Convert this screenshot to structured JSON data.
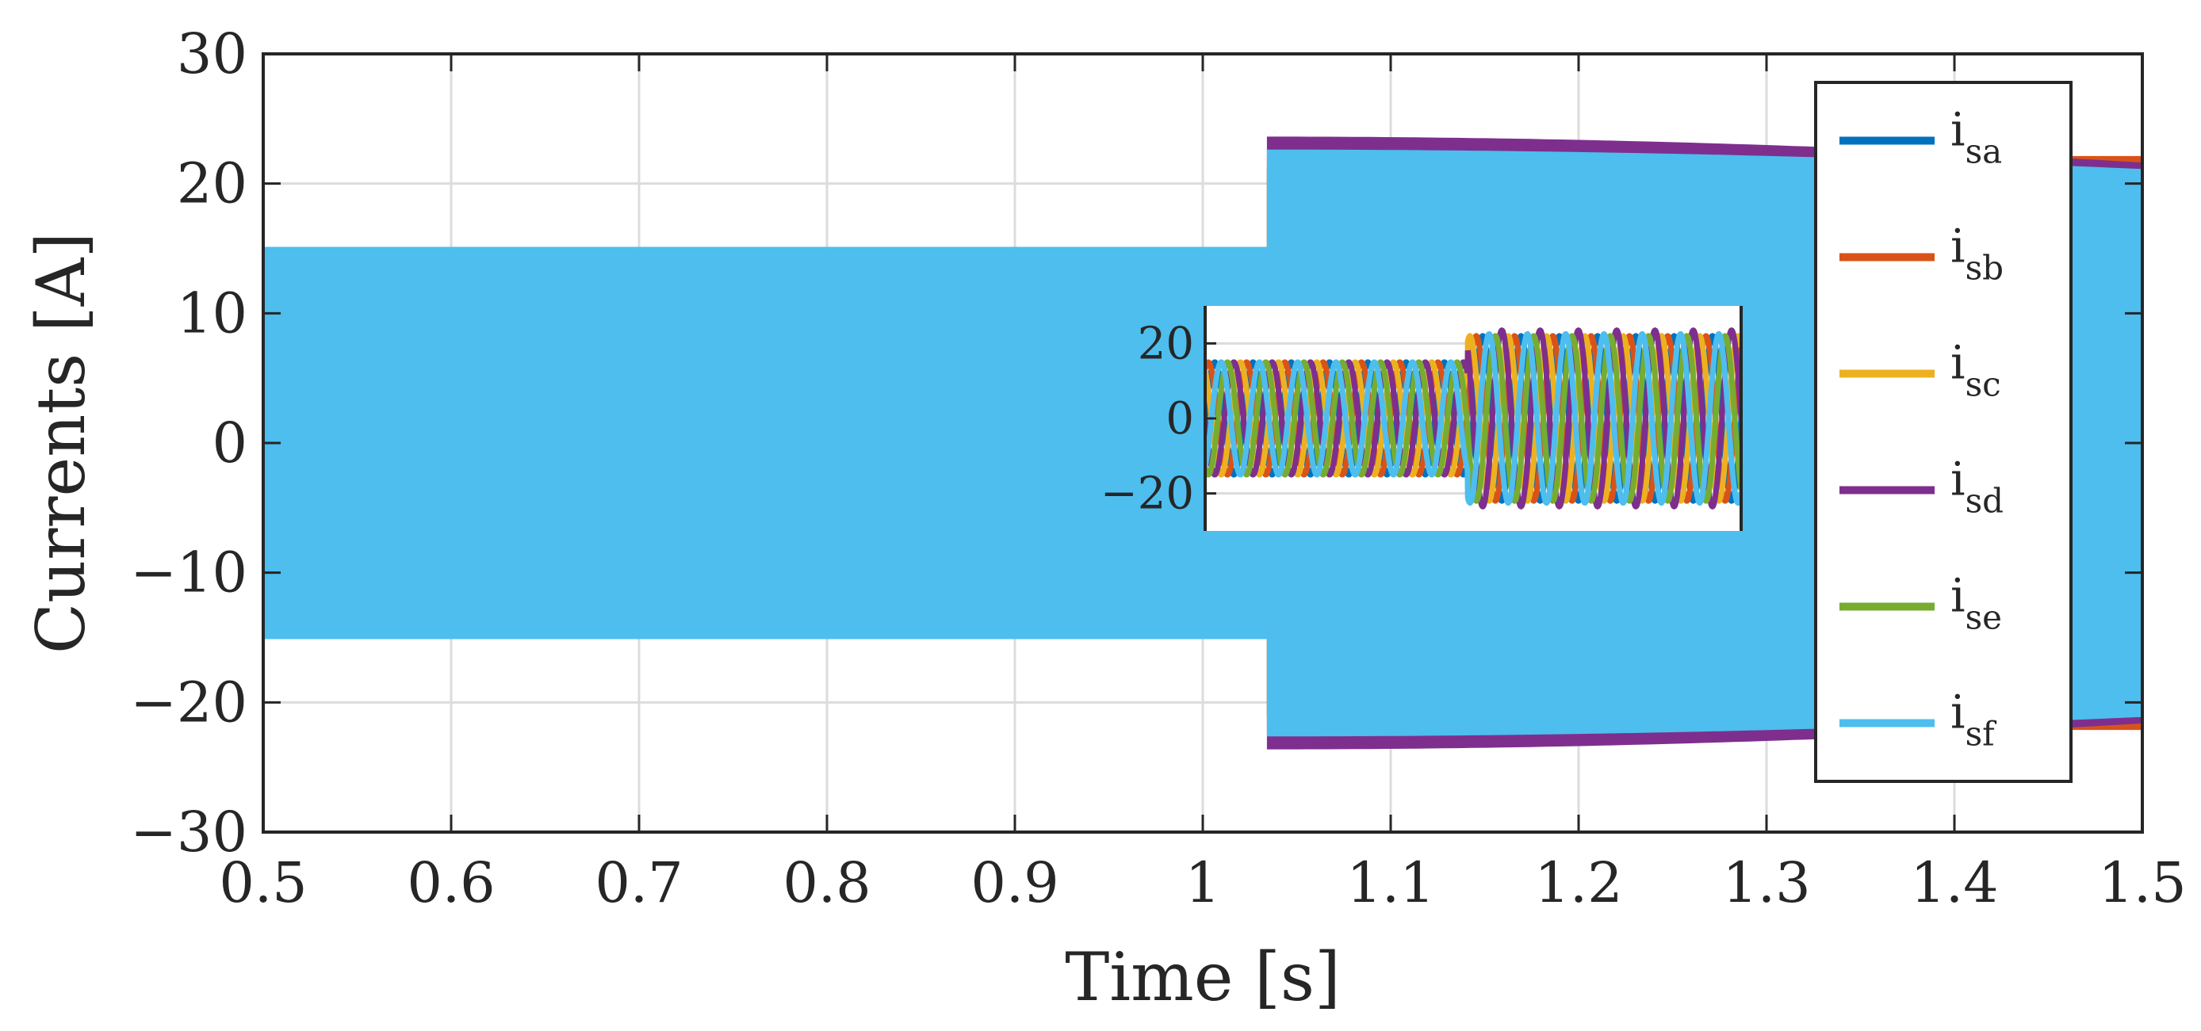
{
  "chart_data": [
    {
      "type": "line",
      "title": "",
      "xlabel": "Time [s]",
      "ylabel": "Currents [A]",
      "xlim": [
        0.5,
        1.5
      ],
      "ylim": [
        -30,
        30
      ],
      "x_ticks": [
        0.5,
        0.6,
        0.7,
        0.8,
        0.9,
        1,
        1.1,
        1.2,
        1.3,
        1.4,
        1.5
      ],
      "x_tick_labels": [
        "0.5",
        "0.6",
        "0.7",
        "0.8",
        "0.9",
        "1",
        "1.1",
        "1.2",
        "1.3",
        "1.4",
        "1.5"
      ],
      "y_ticks": [
        -30,
        -20,
        -10,
        0,
        10,
        20,
        30
      ],
      "y_tick_labels": [
        "−30",
        "−20",
        "−10",
        "0",
        "10",
        "20",
        "30"
      ],
      "grid": true,
      "legend_position": "right",
      "step_time": 1.035,
      "series": [
        {
          "name": "i_sa",
          "main": "i",
          "sub": "sa",
          "color": "#0072BD",
          "amplitude_before": 15,
          "amplitude_after": 21
        },
        {
          "name": "i_sb",
          "main": "i",
          "sub": "sb",
          "color": "#D95319",
          "amplitude_before": 15,
          "amplitude_after": 22
        },
        {
          "name": "i_sc",
          "main": "i",
          "sub": "sc",
          "color": "#EDB120",
          "amplitude_before": 15,
          "amplitude_after": 21
        },
        {
          "name": "i_sd",
          "main": "i",
          "sub": "sd",
          "color": "#7E2F8E",
          "amplitude_before": 15,
          "amplitude_after": 23.5,
          "amplitude_end": 21.5
        },
        {
          "name": "i_se",
          "main": "i",
          "sub": "se",
          "color": "#77AC30",
          "amplitude_before": 15,
          "amplitude_after": 21
        },
        {
          "name": "i_sf",
          "main": "i",
          "sub": "sf",
          "color": "#4DBEEE",
          "amplitude_before": 15,
          "amplitude_after": 22.5,
          "amplitude_end": 21
        }
      ]
    },
    {
      "type": "line",
      "title": "",
      "xlabel": "",
      "ylabel": "",
      "description": "inset zoom around the current step",
      "ylim": [
        -30,
        30
      ],
      "y_ticks": [
        -20,
        0,
        20
      ],
      "y_tick_labels": [
        "−20",
        "0",
        "20"
      ],
      "grid": true,
      "step_fraction": 0.49,
      "cycles_shown": 14,
      "series": [
        {
          "name": "i_sa",
          "color": "#0072BD",
          "amplitude_before": 15,
          "amplitude_after": 22
        },
        {
          "name": "i_sb",
          "color": "#D95319",
          "amplitude_before": 15,
          "amplitude_after": 22
        },
        {
          "name": "i_sc",
          "color": "#EDB120",
          "amplitude_before": 15,
          "amplitude_after": 22
        },
        {
          "name": "i_sd",
          "color": "#7E2F8E",
          "amplitude_before": 15,
          "amplitude_after": 23.5
        },
        {
          "name": "i_se",
          "color": "#77AC30",
          "amplitude_before": 15,
          "amplitude_after": 22
        },
        {
          "name": "i_sf",
          "color": "#4DBEEE",
          "amplitude_before": 15,
          "amplitude_after": 22.5
        }
      ]
    }
  ]
}
